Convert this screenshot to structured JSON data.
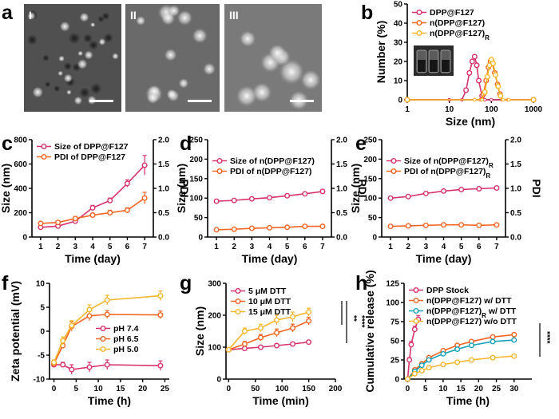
{
  "colors": {
    "red": "#d6336c",
    "orange": "#f26522",
    "yellow": "#f7b52c",
    "teal": "#17a2b8"
  },
  "panel_a": {
    "letter": "a",
    "subpanels": [
      {
        "roman": "I",
        "particle_style": "small"
      },
      {
        "roman": "II",
        "particle_style": "medium"
      },
      {
        "roman": "III",
        "particle_style": "large"
      }
    ]
  },
  "chart_data": [
    {
      "id": "b",
      "letter": "b",
      "type": "line",
      "xlabel": "Size (nm)",
      "ylabel": "Number (%)",
      "xscale": "log",
      "xlim": [
        1,
        1000
      ],
      "ylim": [
        0,
        50
      ],
      "xticks": [
        1,
        10,
        100,
        1000
      ],
      "yticks": [
        0,
        10,
        20,
        30,
        40,
        50
      ],
      "legend_position": "top-left",
      "series": [
        {
          "name": "DPP@F127",
          "color": "red",
          "marker": "circle",
          "x": [
            1,
            10,
            20,
            25,
            30,
            35,
            40,
            45,
            50,
            60,
            70,
            100,
            1000
          ],
          "y": [
            0,
            0,
            0,
            5,
            14,
            20,
            22.5,
            18,
            10,
            2,
            0,
            0,
            0
          ]
        },
        {
          "name": "n(DPP@F127)",
          "color": "orange",
          "marker": "circle",
          "x": [
            1,
            40,
            55,
            65,
            75,
            85,
            95,
            105,
            120,
            140,
            160,
            180,
            250,
            1000
          ],
          "y": [
            0,
            0,
            0,
            3,
            10,
            17,
            20,
            19,
            14,
            8,
            3,
            0,
            0,
            0
          ]
        },
        {
          "name": "n(DPP@F127)",
          "subscript": "R",
          "color": "yellow",
          "marker": "circle",
          "x": [
            1,
            40,
            60,
            70,
            80,
            90,
            100,
            110,
            125,
            145,
            165,
            190,
            260,
            1000
          ],
          "y": [
            0,
            0,
            0,
            4,
            12,
            18,
            21,
            19,
            13,
            7,
            2,
            0,
            0,
            0
          ]
        }
      ]
    },
    {
      "id": "c",
      "letter": "c",
      "type": "line",
      "xlabel": "Time (day)",
      "ylabel": "Size (nm)",
      "y2label": "PDI",
      "xlim": [
        0.5,
        7.5
      ],
      "ylim": [
        0,
        800
      ],
      "y2lim": [
        0,
        2.0
      ],
      "xticks": [
        1,
        2,
        3,
        4,
        5,
        6,
        7
      ],
      "yticks": [
        0,
        200,
        400,
        600,
        800
      ],
      "y2ticks": [
        "0.0",
        "0.5",
        "1.0",
        "1.5",
        "2.0"
      ],
      "legend_position": "top-left",
      "series": [
        {
          "name": "Size of DPP@F127",
          "color": "red",
          "marker": "circle",
          "axis": "y1",
          "x": [
            1,
            2,
            3,
            4,
            5,
            6,
            7
          ],
          "y": [
            80,
            90,
            130,
            240,
            300,
            440,
            590
          ],
          "err": [
            10,
            10,
            15,
            20,
            20,
            30,
            80
          ]
        },
        {
          "name": "PDI of DPP@F127",
          "color": "orange",
          "marker": "circle",
          "axis": "y2",
          "x": [
            1,
            2,
            3,
            4,
            5,
            6,
            7
          ],
          "y": [
            0.28,
            0.3,
            0.38,
            0.45,
            0.5,
            0.55,
            0.8
          ],
          "err": [
            0.02,
            0.03,
            0.04,
            0.04,
            0.05,
            0.05,
            0.12
          ]
        }
      ]
    },
    {
      "id": "d",
      "letter": "d",
      "type": "line",
      "xlabel": "Time (day)",
      "ylabel": "Size (nm)",
      "y2label": "PDI",
      "xlim": [
        0.5,
        7.5
      ],
      "ylim": [
        0,
        250
      ],
      "y2lim": [
        0,
        2.0
      ],
      "xticks": [
        1,
        2,
        3,
        4,
        5,
        6,
        7
      ],
      "yticks": [
        0,
        50,
        100,
        150,
        200,
        250
      ],
      "y2ticks": [
        "0.0",
        "0.5",
        "1.0",
        "1.5",
        "2.0"
      ],
      "legend_position": "top-left",
      "series": [
        {
          "name": "Size of n(DPP@F127)",
          "color": "red",
          "marker": "circle",
          "axis": "y1",
          "x": [
            1,
            2,
            3,
            4,
            5,
            6,
            7
          ],
          "y": [
            92,
            94,
            98,
            101,
            106,
            111,
            117
          ]
        },
        {
          "name": "PDI of n(DPP@F127)",
          "color": "orange",
          "marker": "circle",
          "axis": "y2",
          "x": [
            1,
            2,
            3,
            4,
            5,
            6,
            7
          ],
          "y": [
            0.15,
            0.16,
            0.18,
            0.19,
            0.2,
            0.22,
            0.22
          ]
        }
      ]
    },
    {
      "id": "e",
      "letter": "e",
      "type": "line",
      "xlabel": "Time (day)",
      "ylabel": "Size (nm)",
      "y2label": "PDI",
      "xlim": [
        0.5,
        7.5
      ],
      "ylim": [
        0,
        250
      ],
      "y2lim": [
        0,
        2.0
      ],
      "xticks": [
        1,
        2,
        3,
        4,
        5,
        6,
        7
      ],
      "yticks": [
        0,
        50,
        100,
        150,
        200,
        250
      ],
      "y2ticks": [
        "0.0",
        "0.5",
        "1.0",
        "1.5",
        "2.0"
      ],
      "legend_position": "top-left",
      "series": [
        {
          "name": "Size of n(DPP@F127)",
          "subscript": "R",
          "color": "red",
          "marker": "circle",
          "axis": "y1",
          "x": [
            1,
            2,
            3,
            4,
            5,
            6,
            7
          ],
          "y": [
            100,
            104,
            112,
            118,
            122,
            124,
            126
          ]
        },
        {
          "name": "PDI of n(DPP@F127)",
          "subscript": "R",
          "color": "orange",
          "marker": "circle",
          "axis": "y2",
          "x": [
            1,
            2,
            3,
            4,
            5,
            6,
            7
          ],
          "y": [
            0.22,
            0.23,
            0.24,
            0.25,
            0.25,
            0.24,
            0.25
          ]
        }
      ]
    },
    {
      "id": "f",
      "letter": "f",
      "type": "line",
      "xlabel": "Time (h)",
      "ylabel": "Zeta potential (mV)",
      "xlim": [
        -1,
        26
      ],
      "ylim": [
        -10,
        10
      ],
      "xticks": [
        0,
        5,
        10,
        15,
        20,
        25
      ],
      "yticks": [
        -10,
        -5,
        0,
        5,
        10
      ],
      "legend_position": "center-right",
      "series": [
        {
          "name": "pH 7.4",
          "color": "red",
          "marker": "circle",
          "x": [
            0,
            2,
            4,
            8,
            12,
            24
          ],
          "y": [
            -7,
            -7,
            -8,
            -7.5,
            -7,
            -7.2
          ],
          "err": [
            0.5,
            0.5,
            1,
            1,
            1,
            1
          ]
        },
        {
          "name": "pH 6.5",
          "color": "orange",
          "marker": "circle",
          "x": [
            0,
            2,
            4,
            8,
            12,
            24
          ],
          "y": [
            -6.8,
            -3,
            1,
            3.2,
            3.5,
            3.4
          ],
          "err": [
            0.5,
            0.5,
            1,
            1,
            0.8,
            0.8
          ]
        },
        {
          "name": "pH 5.0",
          "color": "yellow",
          "marker": "circle",
          "x": [
            0,
            2,
            4,
            8,
            12,
            24
          ],
          "y": [
            -6.5,
            -2,
            1.2,
            4.5,
            6.5,
            7.4
          ],
          "err": [
            0.5,
            0.8,
            1,
            1,
            1,
            1
          ]
        }
      ]
    },
    {
      "id": "g",
      "letter": "g",
      "type": "line",
      "xlabel": "Time (min)",
      "ylabel": "Size (nm)",
      "xlim": [
        -5,
        200
      ],
      "ylim": [
        0,
        300
      ],
      "xticks": [
        0,
        50,
        100,
        150,
        200
      ],
      "yticks": [
        0,
        100,
        200,
        300
      ],
      "legend_position": "top-left",
      "significance": [
        "**",
        "****"
      ],
      "series": [
        {
          "name": "5 μM DTT",
          "color": "red",
          "marker": "circle",
          "x": [
            0,
            30,
            60,
            90,
            120,
            150
          ],
          "y": [
            92,
            96,
            100,
            105,
            110,
            116
          ]
        },
        {
          "name": "10 μM DTT",
          "color": "orange",
          "marker": "circle",
          "x": [
            0,
            30,
            60,
            90,
            120,
            150
          ],
          "y": [
            92,
            110,
            130,
            145,
            160,
            182
          ],
          "err": [
            5,
            8,
            10,
            12,
            12,
            12
          ]
        },
        {
          "name": "15 μM DTT",
          "color": "yellow",
          "marker": "circle",
          "x": [
            0,
            30,
            60,
            90,
            120,
            150
          ],
          "y": [
            92,
            150,
            160,
            185,
            195,
            210
          ],
          "err": [
            5,
            10,
            12,
            15,
            15,
            12
          ]
        }
      ]
    },
    {
      "id": "h",
      "letter": "h",
      "type": "line",
      "xlabel": "Time (h)",
      "ylabel": "Cumulative release (%)",
      "xlim": [
        -1,
        35
      ],
      "ylim": [
        0,
        125
      ],
      "xticks": [
        0,
        5,
        10,
        15,
        20,
        25,
        30
      ],
      "yticks": [
        0,
        25,
        50,
        75,
        100,
        125
      ],
      "legend_position": "top-left",
      "significance": [
        "****"
      ],
      "series": [
        {
          "name": "DPP Stock",
          "color": "red",
          "marker": "circle",
          "x": [
            0,
            0.5,
            1,
            2,
            3
          ],
          "y": [
            0,
            25,
            45,
            65,
            78
          ],
          "err": [
            0,
            3,
            4,
            4,
            5
          ]
        },
        {
          "name": "n(DPP@F127)",
          "suffix": "w/   DTT",
          "color": "orange",
          "marker": "circle",
          "x": [
            0,
            2,
            4,
            6,
            10,
            14,
            18,
            24,
            30
          ],
          "y": [
            0,
            12,
            20,
            28,
            37,
            44,
            49,
            55,
            58
          ]
        },
        {
          "name": "n(DPP@F127)",
          "subscript": "R",
          "suffix": "w/   DTT",
          "color": "teal",
          "marker": "circle",
          "x": [
            0,
            2,
            4,
            6,
            10,
            14,
            18,
            24,
            30
          ],
          "y": [
            0,
            10,
            18,
            25,
            33,
            39,
            44,
            49,
            51
          ]
        },
        {
          "name": "n(DPP@F127)",
          "suffix": "w/o DTT",
          "color": "yellow",
          "marker": "circle",
          "x": [
            0,
            2,
            4,
            6,
            10,
            14,
            18,
            24,
            30
          ],
          "y": [
            0,
            7,
            11,
            15,
            19,
            22,
            25,
            28,
            30
          ]
        }
      ]
    }
  ]
}
